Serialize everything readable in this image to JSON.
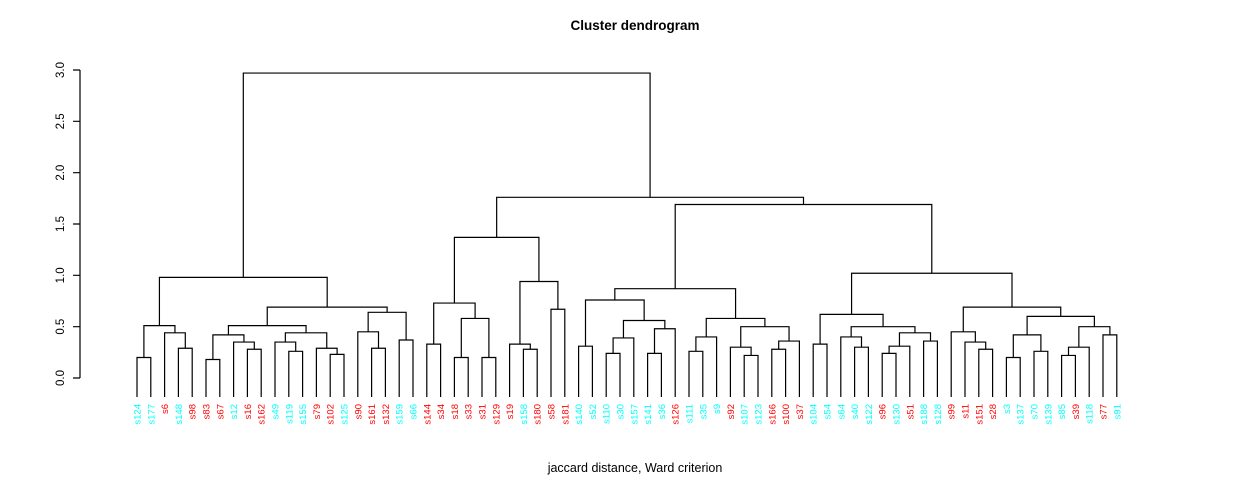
{
  "chart_data": {
    "type": "dendrogram",
    "title": "Cluster dendrogram",
    "xlabel": "jaccard distance, Ward criterion",
    "ylabel": "",
    "ylim": [
      0.0,
      3.0
    ],
    "yticks": [
      "0.0",
      "0.5",
      "1.0",
      "1.5",
      "2.0",
      "2.5",
      "3.0"
    ],
    "ytick_values": [
      0,
      0.5,
      1.0,
      1.5,
      2.0,
      2.5,
      3.0
    ],
    "grid": false,
    "label_colors": {
      "red": "#FF0000",
      "cyan": "#00FFFF"
    },
    "line_color": "#000000",
    "root_height": 2.97,
    "leaves": [
      {
        "label": "s124",
        "color": "cyan"
      },
      {
        "label": "s177",
        "color": "cyan"
      },
      {
        "label": "s6",
        "color": "red"
      },
      {
        "label": "s148",
        "color": "cyan"
      },
      {
        "label": "s98",
        "color": "red"
      },
      {
        "label": "s83",
        "color": "red"
      },
      {
        "label": "s67",
        "color": "red"
      },
      {
        "label": "s12",
        "color": "cyan"
      },
      {
        "label": "s16",
        "color": "red"
      },
      {
        "label": "s162",
        "color": "red"
      },
      {
        "label": "s49",
        "color": "cyan"
      },
      {
        "label": "s119",
        "color": "cyan"
      },
      {
        "label": "s155",
        "color": "cyan"
      },
      {
        "label": "s79",
        "color": "red"
      },
      {
        "label": "s102",
        "color": "red"
      },
      {
        "label": "s125",
        "color": "cyan"
      },
      {
        "label": "s90",
        "color": "red"
      },
      {
        "label": "s161",
        "color": "red"
      },
      {
        "label": "s132",
        "color": "red"
      },
      {
        "label": "s159",
        "color": "cyan"
      },
      {
        "label": "s66",
        "color": "cyan"
      },
      {
        "label": "s144",
        "color": "red"
      },
      {
        "label": "s34",
        "color": "red"
      },
      {
        "label": "s18",
        "color": "red"
      },
      {
        "label": "s33",
        "color": "red"
      },
      {
        "label": "s31",
        "color": "red"
      },
      {
        "label": "s129",
        "color": "red"
      },
      {
        "label": "s19",
        "color": "red"
      },
      {
        "label": "s158",
        "color": "cyan"
      },
      {
        "label": "s180",
        "color": "red"
      },
      {
        "label": "s58",
        "color": "red"
      },
      {
        "label": "s181",
        "color": "red"
      },
      {
        "label": "s140",
        "color": "cyan"
      },
      {
        "label": "s52",
        "color": "cyan"
      },
      {
        "label": "s110",
        "color": "cyan"
      },
      {
        "label": "s30",
        "color": "cyan"
      },
      {
        "label": "s157",
        "color": "cyan"
      },
      {
        "label": "s141",
        "color": "cyan"
      },
      {
        "label": "s36",
        "color": "cyan"
      },
      {
        "label": "s126",
        "color": "red"
      },
      {
        "label": "s111",
        "color": "cyan"
      },
      {
        "label": "s35",
        "color": "cyan"
      },
      {
        "label": "s9",
        "color": "cyan"
      },
      {
        "label": "s92",
        "color": "red"
      },
      {
        "label": "s107",
        "color": "cyan"
      },
      {
        "label": "s123",
        "color": "cyan"
      },
      {
        "label": "s166",
        "color": "red"
      },
      {
        "label": "s100",
        "color": "red"
      },
      {
        "label": "s37",
        "color": "red"
      },
      {
        "label": "s104",
        "color": "cyan"
      },
      {
        "label": "s54",
        "color": "cyan"
      },
      {
        "label": "s64",
        "color": "cyan"
      },
      {
        "label": "s40",
        "color": "cyan"
      },
      {
        "label": "s122",
        "color": "cyan"
      },
      {
        "label": "s96",
        "color": "red"
      },
      {
        "label": "s130",
        "color": "cyan"
      },
      {
        "label": "s51",
        "color": "red"
      },
      {
        "label": "s188",
        "color": "cyan"
      },
      {
        "label": "s128",
        "color": "cyan"
      },
      {
        "label": "s99",
        "color": "red"
      },
      {
        "label": "s11",
        "color": "red"
      },
      {
        "label": "s151",
        "color": "red"
      },
      {
        "label": "s28",
        "color": "red"
      },
      {
        "label": "s3",
        "color": "cyan"
      },
      {
        "label": "s137",
        "color": "cyan"
      },
      {
        "label": "s70",
        "color": "cyan"
      },
      {
        "label": "s139",
        "color": "cyan"
      },
      {
        "label": "s85",
        "color": "cyan"
      },
      {
        "label": "s39",
        "color": "red"
      },
      {
        "label": "s118",
        "color": "cyan"
      },
      {
        "label": "s77",
        "color": "red"
      },
      {
        "label": "s91",
        "color": "cyan"
      }
    ],
    "tree": [
      2.97,
      [
        0.98,
        [
          0.51,
          [
            0.2,
            0,
            1
          ],
          [
            0.44,
            2,
            [
              0.29,
              3,
              4
            ]
          ]
        ],
        [
          0.69,
          [
            0.51,
            [
              0.42,
              [
                0.18,
                5,
                6
              ],
              [
                0.35,
                7,
                [
                  0.28,
                  8,
                  9
                ]
              ]
            ],
            [
              0.44,
              [
                0.35,
                10,
                [
                  0.26,
                  11,
                  12
                ]
              ],
              [
                0.29,
                13,
                [
                  0.23,
                  14,
                  15
                ]
              ]
            ]
          ],
          [
            0.64,
            [
              0.45,
              16,
              [
                0.29,
                17,
                18
              ]
            ],
            [
              0.37,
              19,
              20
            ]
          ]
        ]
      ],
      [
        1.76,
        [
          1.37,
          [
            0.73,
            [
              0.33,
              21,
              22
            ],
            [
              0.58,
              [
                0.2,
                23,
                24
              ],
              [
                0.2,
                25,
                26
              ]
            ]
          ],
          [
            0.94,
            [
              0.33,
              27,
              [
                0.28,
                28,
                29
              ]
            ],
            [
              0.67,
              30,
              31
            ]
          ]
        ],
        [
          1.69,
          [
            0.87,
            [
              0.76,
              [
                0.31,
                32,
                33
              ],
              [
                0.56,
                [
                  0.39,
                  [
                    0.24,
                    34,
                    35
                  ],
                  36
                ],
                [
                  0.48,
                  [
                    0.24,
                    37,
                    38
                  ],
                  39
                ]
              ]
            ],
            [
              0.58,
              [
                0.4,
                [
                  0.26,
                  40,
                  41
                ],
                42
              ],
              [
                0.5,
                [
                  0.3,
                  43,
                  [
                    0.22,
                    44,
                    45
                  ]
                ],
                [
                  0.36,
                  [
                    0.28,
                    46,
                    47
                  ],
                  48
                ]
              ]
            ]
          ],
          [
            1.02,
            [
              0.62,
              [
                0.33,
                49,
                50
              ],
              [
                0.5,
                [
                  0.4,
                  51,
                  [
                    0.3,
                    52,
                    53
                  ]
                ],
                [
                  0.44,
                  [
                    0.31,
                    [
                      0.24,
                      54,
                      55
                    ],
                    56
                  ],
                  [
                    0.36,
                    57,
                    58
                  ]
                ]
              ]
            ],
            [
              0.69,
              [
                0.45,
                59,
                [
                  0.35,
                  60,
                  [
                    0.28,
                    61,
                    62
                  ]
                ]
              ],
              [
                0.6,
                [
                  0.42,
                  [
                    0.2,
                    63,
                    64
                  ],
                  [
                    0.26,
                    65,
                    66
                  ]
                ],
                [
                  0.5,
                  [
                    0.3,
                    [
                      0.22,
                      67,
                      68
                    ],
                    69
                  ],
                  [
                    0.42,
                    70,
                    71
                  ]
                ]
              ]
            ]
          ]
        ]
      ]
    ]
  }
}
